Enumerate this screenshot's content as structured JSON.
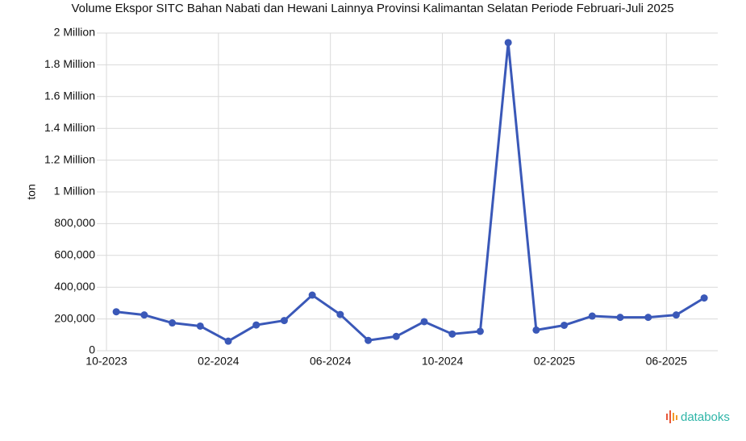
{
  "chart_data": {
    "type": "line",
    "title": "Volume Ekspor SITC Bahan Nabati dan Hewani Lainnya Provinsi Kalimantan Selatan Periode Februari-Juli 2025",
    "y_label": "ton",
    "x": [
      "2023-10",
      "2023-11",
      "2023-12",
      "2024-01",
      "2024-02",
      "2024-03",
      "2024-04",
      "2024-05",
      "2024-06",
      "2024-07",
      "2024-08",
      "2024-09",
      "2024-10",
      "2024-11",
      "2024-12",
      "2025-01",
      "2025-02",
      "2025-03",
      "2025-04",
      "2025-05",
      "2025-06",
      "2025-07"
    ],
    "series": [
      {
        "name": "Volume",
        "color": "#3a58b8",
        "values": [
          245000,
          225000,
          175000,
          155000,
          60000,
          162000,
          190000,
          350000,
          228000,
          65000,
          90000,
          183000,
          105000,
          122000,
          1940000,
          130000,
          160000,
          218000,
          210000,
          210000,
          225000,
          332000
        ]
      }
    ],
    "xlim": [
      "2023-10",
      "2025-07"
    ],
    "xticks": [
      {
        "value": "2023-10",
        "label": "10-2023"
      },
      {
        "value": "2024-02",
        "label": "02-2024"
      },
      {
        "value": "2024-06",
        "label": "06-2024"
      },
      {
        "value": "2024-10",
        "label": "10-2024"
      },
      {
        "value": "2025-02",
        "label": "02-2025"
      },
      {
        "value": "2025-06",
        "label": "06-2025"
      }
    ],
    "ylim": [
      0,
      2000000
    ],
    "yticks": [
      0,
      {
        "value": 200000,
        "label": "200,000"
      },
      {
        "value": 400000,
        "label": "400,000"
      },
      {
        "value": 600000,
        "label": "600,000"
      },
      {
        "value": 800000,
        "label": "800,000"
      },
      {
        "value": 1000000,
        "label": "1 Million"
      },
      {
        "value": 1200000,
        "label": "1.2 Million"
      },
      {
        "value": 1400000,
        "label": "1.4 Million"
      },
      {
        "value": 1600000,
        "label": "1.6 Million"
      },
      {
        "value": 1800000,
        "label": "1.8 Million"
      },
      {
        "value": 2000000,
        "label": "2 Million"
      }
    ],
    "grid": true
  },
  "brand": "databoks"
}
